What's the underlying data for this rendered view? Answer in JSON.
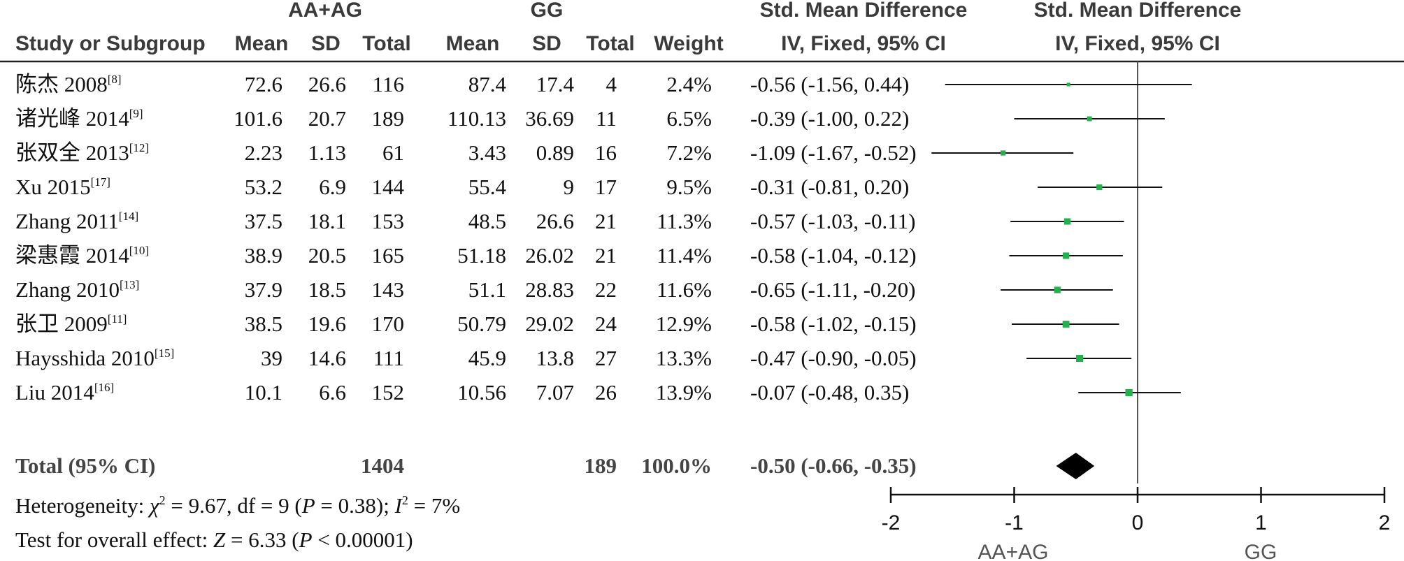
{
  "header": {
    "group1_name": "AA+AG",
    "group2_name": "GG",
    "std_diff_title": "Std. Mean Difference",
    "std_diff_plot_title": "Std. Mean Difference",
    "study_col": "Study or Subgroup",
    "mean1": "Mean",
    "sd1": "SD",
    "total1": "Total",
    "mean2": "Mean",
    "sd2": "SD",
    "total2": "Total",
    "weight": "Weight",
    "ci_col": "IV, Fixed, 95% CI",
    "ci_plot_col": "IV, Fixed, 95% CI"
  },
  "chart_data": {
    "type": "forest",
    "xlim": [
      -2,
      2
    ],
    "ticks": [
      "-2",
      "-1",
      "0",
      "1",
      "2"
    ],
    "tick_values": [
      -2,
      -1,
      0,
      1,
      2
    ],
    "favours_left": "AA+AG",
    "favours_right": "GG",
    "marker_color": "#22b14c",
    "studies": [
      {
        "name": "陈杰 2008",
        "ref": "[8]",
        "mean1": "72.6",
        "sd1": "26.6",
        "total1": "116",
        "mean2": "87.4",
        "sd2": "17.4",
        "total2": "4",
        "weight": "2.4%",
        "ci_text": "-0.56 (-1.56, 0.44)",
        "est": -0.56,
        "lo": -1.56,
        "hi": 0.44,
        "w": 2.4
      },
      {
        "name": "诸光峰 2014",
        "ref": "[9]",
        "mean1": "101.6",
        "sd1": "20.7",
        "total1": "189",
        "mean2": "110.13",
        "sd2": "36.69",
        "total2": "11",
        "weight": "6.5%",
        "ci_text": "-0.39 (-1.00, 0.22)",
        "est": -0.39,
        "lo": -1.0,
        "hi": 0.22,
        "w": 6.5
      },
      {
        "name": "张双全 2013",
        "ref": "[12]",
        "mean1": "2.23",
        "sd1": "1.13",
        "total1": "61",
        "mean2": "3.43",
        "sd2": "0.89",
        "total2": "16",
        "weight": "7.2%",
        "ci_text": "-1.09 (-1.67, -0.52)",
        "est": -1.09,
        "lo": -1.67,
        "hi": -0.52,
        "w": 7.2
      },
      {
        "name": "Xu 2015",
        "ref": "[17]",
        "mean1": "53.2",
        "sd1": "6.9",
        "total1": "144",
        "mean2": "55.4",
        "sd2": "9",
        "total2": "17",
        "weight": "9.5%",
        "ci_text": "-0.31 (-0.81, 0.20)",
        "est": -0.31,
        "lo": -0.81,
        "hi": 0.2,
        "w": 9.5
      },
      {
        "name": "Zhang 2011",
        "ref": "[14]",
        "mean1": "37.5",
        "sd1": "18.1",
        "total1": "153",
        "mean2": "48.5",
        "sd2": "26.6",
        "total2": "21",
        "weight": "11.3%",
        "ci_text": "-0.57 (-1.03, -0.11)",
        "est": -0.57,
        "lo": -1.03,
        "hi": -0.11,
        "w": 11.3
      },
      {
        "name": "梁惠霞 2014",
        "ref": "[10]",
        "mean1": "38.9",
        "sd1": "20.5",
        "total1": "165",
        "mean2": "51.18",
        "sd2": "26.02",
        "total2": "21",
        "weight": "11.4%",
        "ci_text": "-0.58 (-1.04, -0.12)",
        "est": -0.58,
        "lo": -1.04,
        "hi": -0.12,
        "w": 11.4
      },
      {
        "name": "Zhang 2010",
        "ref": "[13]",
        "mean1": "37.9",
        "sd1": "18.5",
        "total1": "143",
        "mean2": "51.1",
        "sd2": "28.83",
        "total2": "22",
        "weight": "11.6%",
        "ci_text": "-0.65 (-1.11, -0.20)",
        "est": -0.65,
        "lo": -1.11,
        "hi": -0.2,
        "w": 11.6
      },
      {
        "name": "张卫 2009",
        "ref": "[11]",
        "mean1": "38.5",
        "sd1": "19.6",
        "total1": "170",
        "mean2": "50.79",
        "sd2": "29.02",
        "total2": "24",
        "weight": "12.9%",
        "ci_text": "-0.58 (-1.02, -0.15)",
        "est": -0.58,
        "lo": -1.02,
        "hi": -0.15,
        "w": 12.9
      },
      {
        "name": "Haysshida 2010",
        "ref": "[15]",
        "mean1": "39",
        "sd1": "14.6",
        "total1": "111",
        "mean2": "45.9",
        "sd2": "13.8",
        "total2": "27",
        "weight": "13.3%",
        "ci_text": "-0.47 (-0.90, -0.05)",
        "est": -0.47,
        "lo": -0.9,
        "hi": -0.05,
        "w": 13.3
      },
      {
        "name": "Liu 2014",
        "ref": "[16]",
        "mean1": "10.1",
        "sd1": "6.6",
        "total1": "152",
        "mean2": "10.56",
        "sd2": "7.07",
        "total2": "26",
        "weight": "13.9%",
        "ci_text": "-0.07 (-0.48, 0.35)",
        "est": -0.07,
        "lo": -0.48,
        "hi": 0.35,
        "w": 13.9
      }
    ],
    "total": {
      "label": "Total (95% CI)",
      "total1": "1404",
      "total2": "189",
      "weight": "100.0%",
      "ci_text": "-0.50 (-0.66, -0.35)",
      "est": -0.5,
      "lo": -0.66,
      "hi": -0.35
    },
    "heterogeneity": {
      "prefix": "Heterogeneity: ",
      "chi_sym": "χ",
      "chi_exp": "2",
      "chi_val": " = 9.67, df = 9 (",
      "p_sym": "P",
      "p_val": " = 0.38); ",
      "i_sym": "I",
      "i_exp": "2",
      "i_val": " = 7%"
    },
    "overall": {
      "prefix": "Test for overall effect: ",
      "z_sym": "Z",
      "z_val": " = 6.33 (",
      "p_sym": "P",
      "p_val": " < 0.00001)"
    }
  }
}
